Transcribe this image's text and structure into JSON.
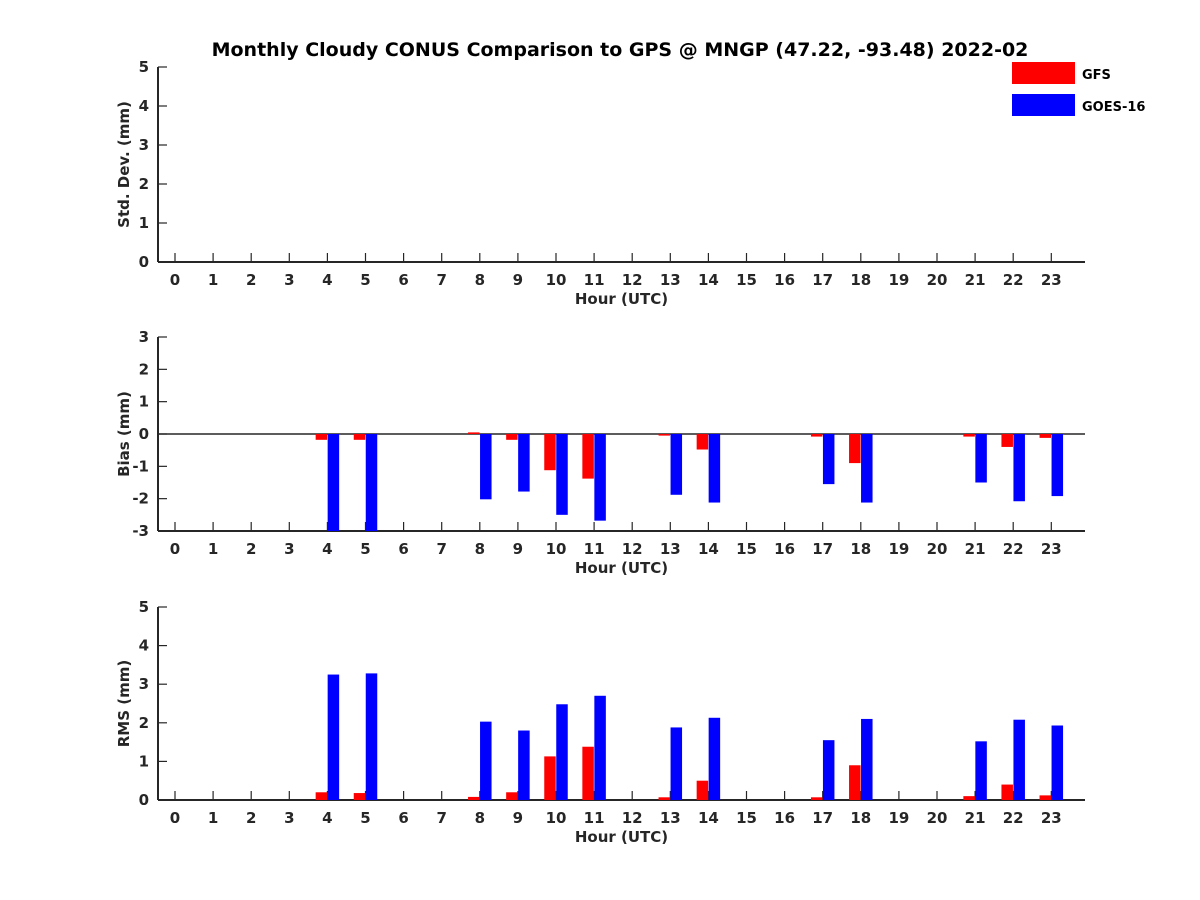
{
  "title": "Monthly Cloudy CONUS Comparison to GPS @ MNGP (47.22, -93.48) 2022-02",
  "legend": [
    {
      "label": "GFS",
      "color": "#ff0000"
    },
    {
      "label": "GOES-16",
      "color": "#0000ff"
    }
  ],
  "chart_data": [
    {
      "type": "bar",
      "id": "stddev",
      "xlabel": "Hour (UTC)",
      "ylabel": "Std. Dev. (mm)",
      "ylim": [
        0,
        5
      ],
      "yticks": [
        0,
        1,
        2,
        3,
        4,
        5
      ],
      "x": [
        0,
        1,
        2,
        3,
        4,
        5,
        6,
        7,
        8,
        9,
        10,
        11,
        12,
        13,
        14,
        15,
        16,
        17,
        18,
        19,
        20,
        21,
        22,
        23
      ],
      "series": [
        {
          "name": "GFS",
          "color": "#ff0000",
          "values": [
            null,
            null,
            null,
            null,
            null,
            null,
            null,
            null,
            null,
            null,
            null,
            null,
            null,
            null,
            null,
            null,
            null,
            null,
            null,
            null,
            null,
            null,
            null,
            null
          ]
        },
        {
          "name": "GOES-16",
          "color": "#0000ff",
          "values": [
            null,
            null,
            null,
            null,
            null,
            null,
            null,
            null,
            null,
            null,
            null,
            null,
            null,
            null,
            null,
            null,
            null,
            null,
            null,
            null,
            null,
            null,
            null,
            null
          ]
        }
      ]
    },
    {
      "type": "bar",
      "id": "bias",
      "xlabel": "Hour (UTC)",
      "ylabel": "Bias (mm)",
      "ylim": [
        -3,
        3
      ],
      "yticks": [
        -3,
        -2,
        -1,
        0,
        1,
        2,
        3
      ],
      "x": [
        0,
        1,
        2,
        3,
        4,
        5,
        6,
        7,
        8,
        9,
        10,
        11,
        12,
        13,
        14,
        15,
        16,
        17,
        18,
        19,
        20,
        21,
        22,
        23
      ],
      "series": [
        {
          "name": "GFS",
          "color": "#ff0000",
          "values": [
            null,
            null,
            null,
            null,
            -0.18,
            -0.18,
            null,
            null,
            0.05,
            -0.18,
            -1.12,
            -1.38,
            null,
            -0.05,
            -0.48,
            null,
            null,
            -0.08,
            -0.9,
            null,
            null,
            -0.08,
            -0.4,
            -0.12
          ]
        },
        {
          "name": "GOES-16",
          "color": "#0000ff",
          "values": [
            null,
            null,
            null,
            null,
            -3.0,
            -3.0,
            null,
            null,
            -2.02,
            -1.78,
            -2.5,
            -2.68,
            null,
            -1.88,
            -2.12,
            null,
            null,
            -1.55,
            -2.12,
            null,
            null,
            -1.5,
            -2.08,
            -1.92
          ]
        }
      ]
    },
    {
      "type": "bar",
      "id": "rms",
      "xlabel": "Hour (UTC)",
      "ylabel": "RMS (mm)",
      "ylim": [
        0,
        5
      ],
      "yticks": [
        0,
        1,
        2,
        3,
        4,
        5
      ],
      "x": [
        0,
        1,
        2,
        3,
        4,
        5,
        6,
        7,
        8,
        9,
        10,
        11,
        12,
        13,
        14,
        15,
        16,
        17,
        18,
        19,
        20,
        21,
        22,
        23
      ],
      "series": [
        {
          "name": "GFS",
          "color": "#ff0000",
          "values": [
            null,
            null,
            null,
            null,
            0.2,
            0.18,
            null,
            null,
            0.08,
            0.2,
            1.13,
            1.38,
            null,
            0.07,
            0.5,
            null,
            null,
            0.07,
            0.9,
            null,
            null,
            0.1,
            0.4,
            0.12
          ]
        },
        {
          "name": "GOES-16",
          "color": "#0000ff",
          "values": [
            null,
            null,
            null,
            null,
            3.25,
            3.28,
            null,
            null,
            2.03,
            1.8,
            2.48,
            2.7,
            null,
            1.88,
            2.13,
            null,
            null,
            1.55,
            2.1,
            null,
            null,
            1.52,
            2.08,
            1.93
          ]
        }
      ]
    }
  ]
}
